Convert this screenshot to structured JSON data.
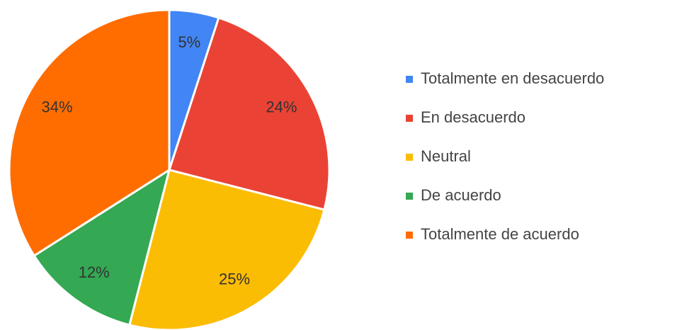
{
  "chart_data": {
    "type": "pie",
    "categories": [
      "Totalmente en desacuerdo",
      "En desacuerdo",
      "Neutral",
      "De acuerdo",
      "Totalmente de acuerdo"
    ],
    "values": [
      5,
      24,
      25,
      12,
      34
    ],
    "value_labels": [
      "5%",
      "24%",
      "25%",
      "12%",
      "34%"
    ],
    "colors": [
      "#4285f4",
      "#ea4335",
      "#fbbc04",
      "#34a853",
      "#ff6d01"
    ],
    "legend": "right"
  }
}
